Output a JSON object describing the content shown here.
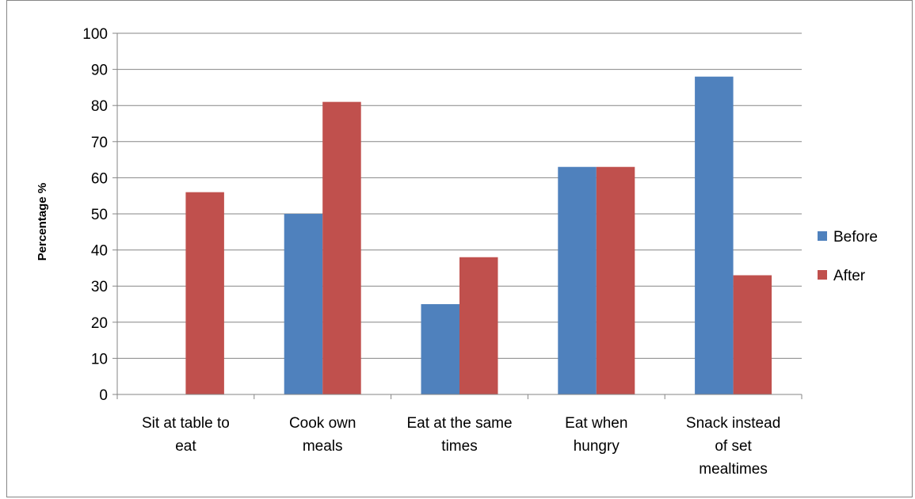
{
  "chart_data": {
    "type": "bar",
    "title": "",
    "xlabel": "",
    "ylabel": "Percentage %",
    "ylim": [
      0,
      100
    ],
    "yticks": [
      0,
      10,
      20,
      30,
      40,
      50,
      60,
      70,
      80,
      90,
      100
    ],
    "categories": [
      [
        "Sit at table to",
        "eat"
      ],
      [
        "Cook own",
        "meals"
      ],
      [
        "Eat at the same",
        "times"
      ],
      [
        "Eat when",
        "hungry"
      ],
      [
        "Snack instead",
        "of set",
        "mealtimes"
      ]
    ],
    "series": [
      {
        "name": "Before",
        "color": "#4f81bd",
        "values": [
          0,
          50,
          25,
          63,
          88
        ]
      },
      {
        "name": "After",
        "color": "#c0504d",
        "values": [
          56,
          81,
          38,
          63,
          33
        ]
      }
    ],
    "grid": true,
    "legend": "right"
  }
}
